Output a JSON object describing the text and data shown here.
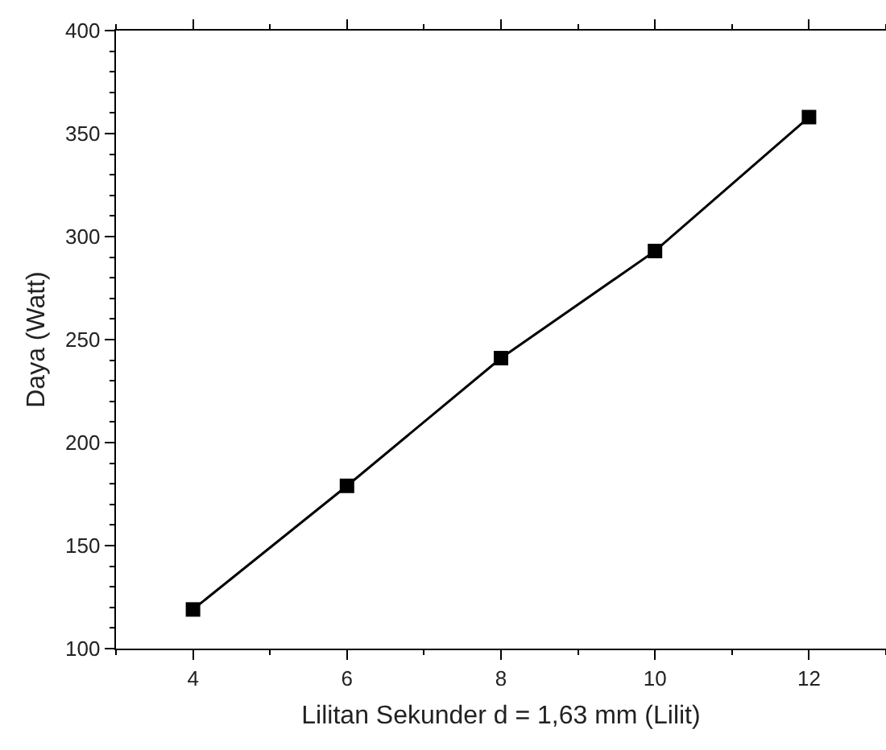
{
  "chart_data": {
    "type": "line",
    "xlabel": "Lilitan Sekunder d = 1,63 mm (Lilit)",
    "ylabel": "Daya (Watt)",
    "x": [
      4,
      6,
      8,
      10,
      12
    ],
    "series": [
      {
        "color": "#000000",
        "values": [
          119,
          179,
          241,
          293,
          358
        ]
      }
    ],
    "xlim": [
      3,
      13
    ],
    "xticks": [
      4,
      6,
      8,
      10,
      12
    ],
    "ylim": [
      100,
      400
    ],
    "yticks": [
      100,
      150,
      200,
      250,
      300,
      350,
      400
    ],
    "marker": "square",
    "line_style": "solid"
  }
}
